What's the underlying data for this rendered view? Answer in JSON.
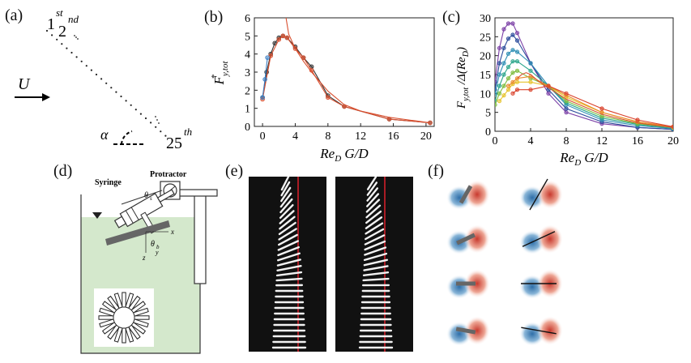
{
  "panels": {
    "a": {
      "label": "(a)",
      "first_label": "1",
      "first_sup": "st",
      "second_label": "2",
      "second_sup": "nd",
      "last_label": "25",
      "last_sup": "th",
      "flow_label": "U",
      "angle_label": "α"
    },
    "b": {
      "label": "(b)"
    },
    "c": {
      "label": "(c)"
    },
    "d": {
      "label": "(d)",
      "syringe_label": "Syringe",
      "protractor_label": "Protractor",
      "x_axis": "x",
      "z_axis": "z",
      "y_axis": "y",
      "theta_s": "θ",
      "theta_s_sub": "s",
      "theta_b": "θ",
      "theta_b_sub": "b"
    },
    "e": {
      "label": "(e)"
    },
    "f": {
      "label": "(f)"
    }
  },
  "chart_data": [
    {
      "id": "b",
      "type": "line",
      "xlabel": "Re_D G/D",
      "ylabel": "F*_y,tot",
      "xlim": [
        -1,
        21
      ],
      "ylim": [
        0,
        6
      ],
      "xticks": [
        0,
        4,
        8,
        12,
        16,
        20
      ],
      "yticks": [
        0,
        1,
        2,
        3,
        4,
        5,
        6
      ],
      "series": [
        {
          "color": "#333333",
          "marker": "circle",
          "x": [
            0,
            0.5,
            1.0,
            1.5,
            2.0,
            2.5,
            3.0,
            4.0,
            5.0,
            6.0,
            8.0,
            10.0,
            15.5,
            20.5
          ],
          "y": [
            1.6,
            3.0,
            4.0,
            4.6,
            4.9,
            5.0,
            4.9,
            4.4,
            3.8,
            3.3,
            1.7,
            1.1,
            0.4,
            0.2
          ]
        },
        {
          "color": "#d95030",
          "marker": "circle",
          "x": [
            0,
            1.0,
            2.0,
            2.5,
            3.0,
            4.0,
            5.0,
            6.0,
            8.0,
            10.0,
            15.5,
            20.5
          ],
          "y": [
            1.5,
            3.9,
            4.8,
            5.0,
            4.9,
            4.3,
            3.8,
            3.1,
            1.6,
            1.1,
            0.4,
            0.2
          ]
        },
        {
          "color": "#d95030",
          "marker": "none",
          "x": [
            2.8,
            3.2,
            4.0,
            5.0,
            6.0,
            8.0,
            10.0,
            12.0,
            15.5,
            20.5
          ],
          "y": [
            6.2,
            5.1,
            4.3,
            3.6,
            3.0,
            1.95,
            1.2,
            0.85,
            0.5,
            0.2
          ]
        },
        {
          "color": "#3b7fc4",
          "marker": "circle",
          "x": [
            0,
            0.3,
            0.6
          ],
          "y": [
            1.6,
            2.6,
            3.8
          ]
        }
      ]
    },
    {
      "id": "c",
      "type": "line",
      "xlabel": "Re_D G/D",
      "ylabel": "F*_y,tot / Δ(Re_D)",
      "xlim": [
        0,
        20
      ],
      "ylim": [
        0,
        30
      ],
      "xticks": [
        0,
        4,
        8,
        12,
        16,
        20
      ],
      "yticks": [
        0,
        5,
        10,
        15,
        20,
        25,
        30
      ],
      "series": [
        {
          "color": "#7b3fa6",
          "x": [
            0,
            0.5,
            1,
            1.5,
            2,
            2.5,
            4,
            6,
            8,
            12,
            16,
            20
          ],
          "y": [
            13,
            22,
            27,
            28.5,
            28.5,
            26,
            18,
            10,
            5,
            2,
            1,
            0.5
          ]
        },
        {
          "color": "#2a4b9b",
          "x": [
            0,
            0.5,
            1,
            1.5,
            2,
            2.5,
            4,
            6,
            8,
            12,
            16,
            20
          ],
          "y": [
            11,
            18,
            22,
            24.5,
            25.5,
            24,
            18,
            11,
            6,
            2.5,
            1,
            0.5
          ]
        },
        {
          "color": "#2f8fb5",
          "x": [
            0,
            0.5,
            1,
            1.5,
            2,
            2.5,
            4,
            6,
            8,
            12,
            16,
            20
          ],
          "y": [
            10,
            15,
            18,
            20.5,
            21.5,
            21,
            18,
            12,
            7,
            3,
            1.5,
            0.7
          ]
        },
        {
          "color": "#2aa58a",
          "x": [
            0,
            0.5,
            1,
            1.5,
            2,
            2.5,
            4,
            6,
            8,
            12,
            16,
            20
          ],
          "y": [
            8,
            12,
            15,
            17,
            18.5,
            18.5,
            16,
            12,
            7.5,
            3.5,
            1.8,
            0.8
          ]
        },
        {
          "color": "#7cbb3c",
          "x": [
            0,
            0.5,
            1,
            1.5,
            2,
            2.5,
            4,
            6,
            8,
            12,
            16,
            20
          ],
          "y": [
            7,
            10,
            12,
            14,
            15.5,
            16,
            14,
            12,
            8,
            4,
            2,
            1
          ]
        },
        {
          "color": "#e6c22a",
          "x": [
            0.5,
            1,
            1.5,
            2,
            2.5,
            4,
            6,
            8,
            12,
            16,
            20
          ],
          "y": [
            8,
            9.5,
            11,
            12.5,
            13,
            13,
            12,
            9,
            5,
            2.5,
            1
          ]
        },
        {
          "color": "#ea8a2a",
          "x": [
            1.5,
            2,
            2.5,
            4,
            6,
            8,
            12,
            16,
            20
          ],
          "y": [
            12,
            13,
            14,
            14.5,
            12,
            9.5,
            5,
            2.5,
            1.2
          ]
        },
        {
          "color": "#d9412a",
          "x": [
            2,
            2.5,
            4,
            6,
            8,
            12,
            16,
            20
          ],
          "y": [
            10,
            11,
            11,
            12,
            10,
            6,
            3,
            1.2
          ]
        },
        {
          "color": "#d95030",
          "marker": "none",
          "x": [
            2.5,
            3,
            3.5,
            4,
            5,
            6,
            8,
            12,
            16,
            20
          ],
          "y": [
            14,
            15,
            15.5,
            15,
            13,
            11.5,
            8.5,
            4.5,
            2.2,
            1
          ]
        }
      ]
    }
  ],
  "image_seq": {
    "e_left_count": 30,
    "e_right_count": 30
  }
}
